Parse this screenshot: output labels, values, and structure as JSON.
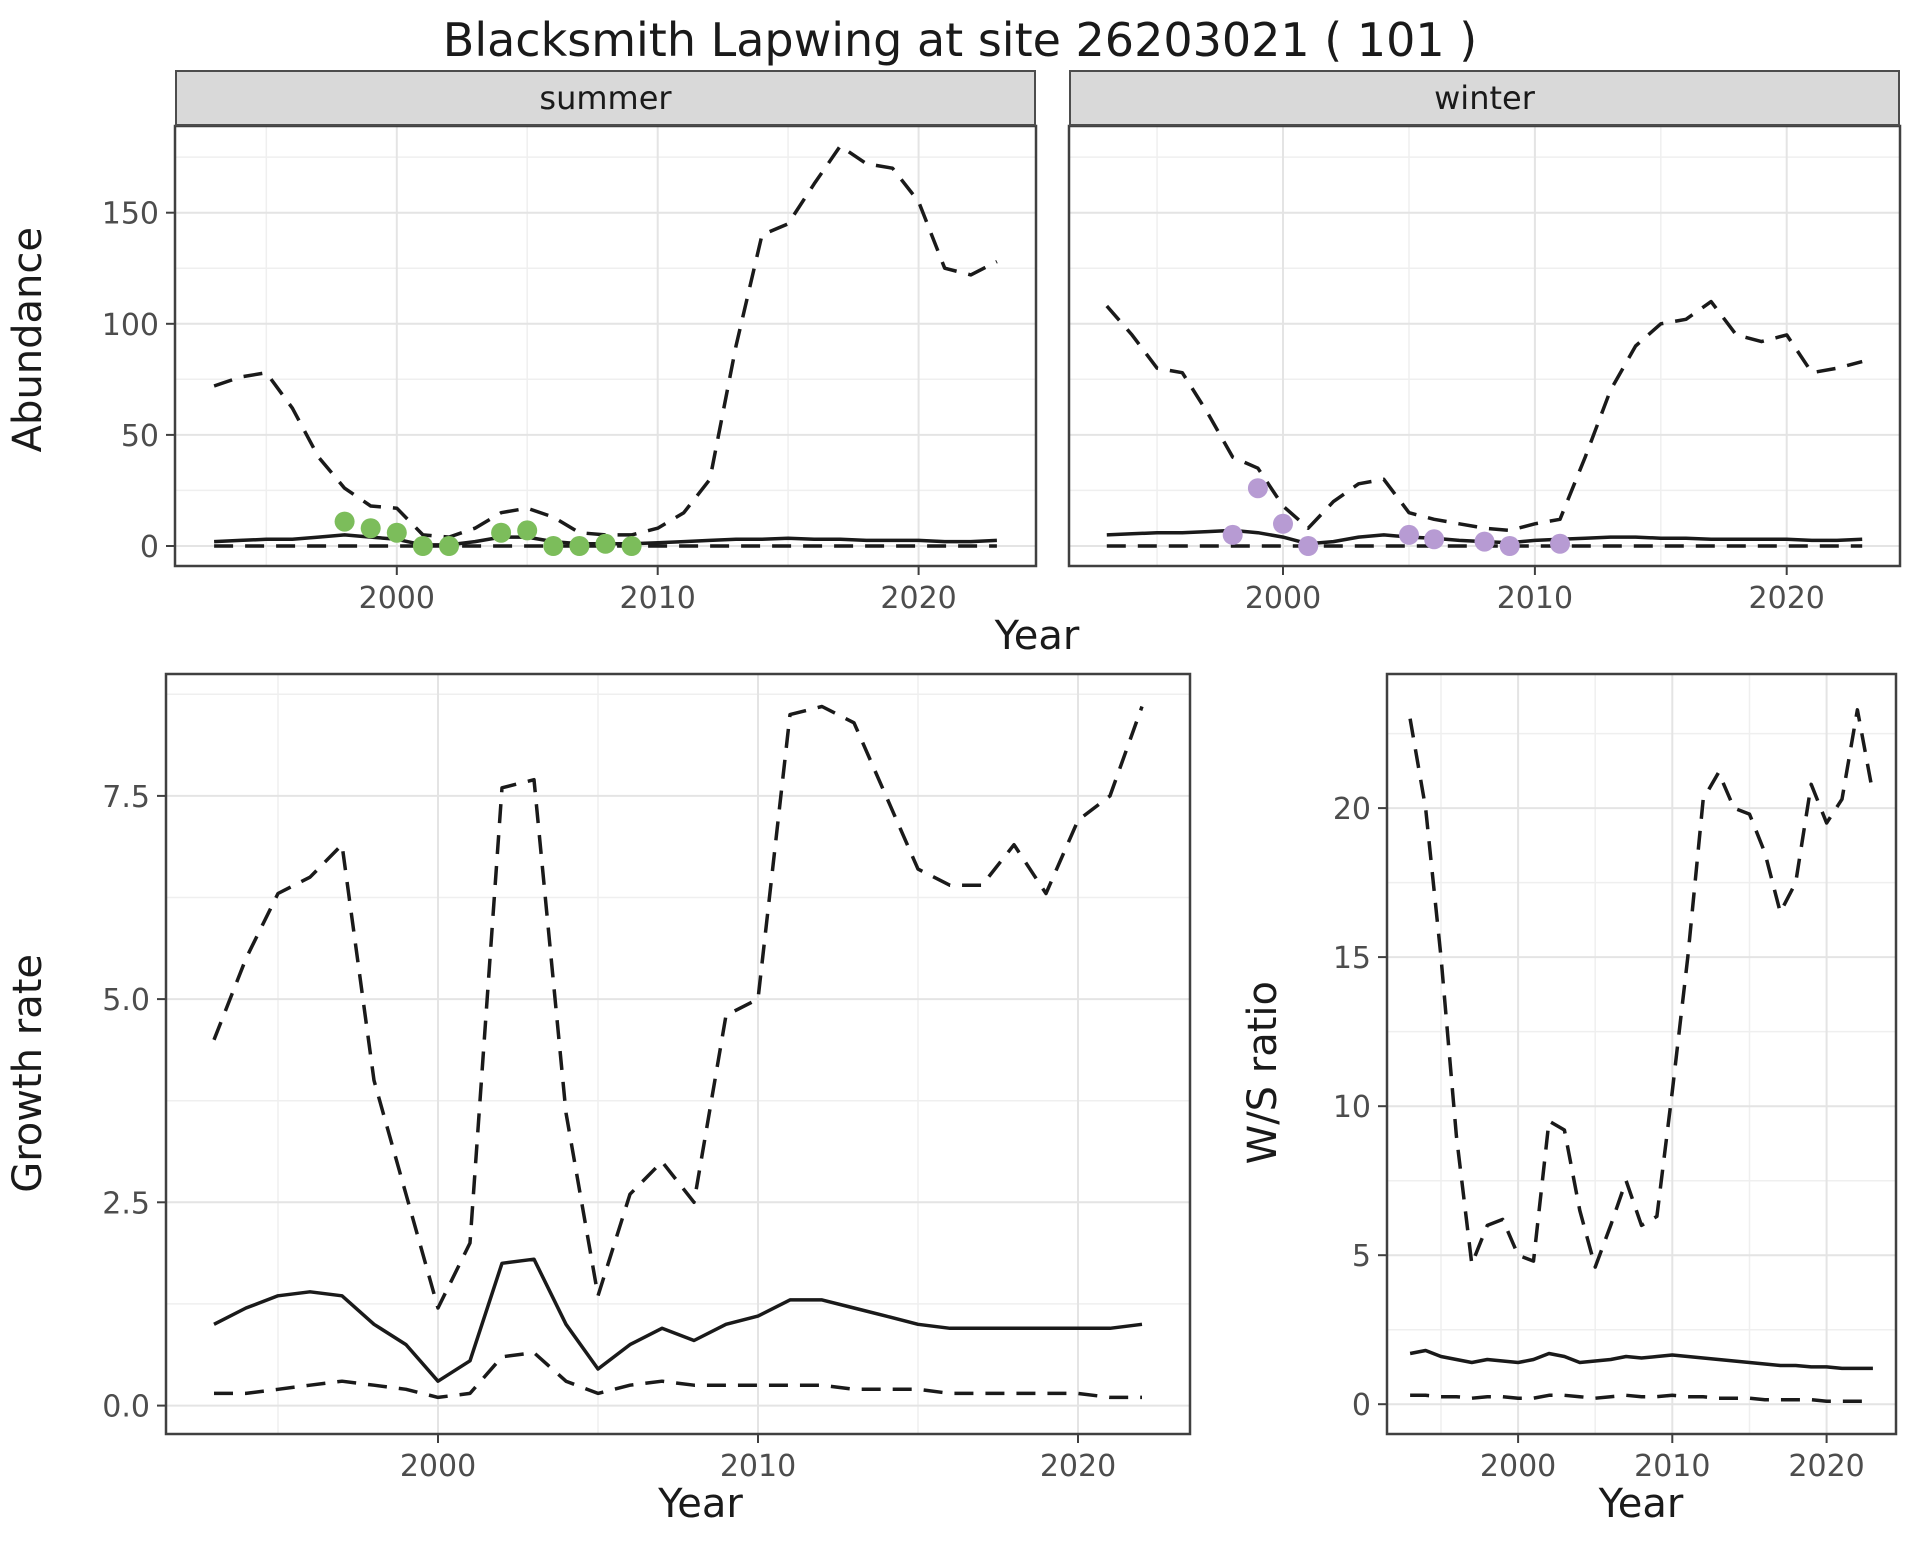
{
  "title": "Blacksmith Lapwing at site 26203021 ( 101 )",
  "colors": {
    "line": "#1a1a1a",
    "border": "#404040",
    "grid_major": "#e4e4e4",
    "grid_minor": "#efefef",
    "strip_bg": "#d9d9d9",
    "tick_text": "#4d4d4d",
    "summer_points": "#7cbd5b",
    "winter_points": "#b79bd3"
  },
  "chart_data": [
    {
      "id": "summer",
      "type": "line",
      "facet_label": "summer",
      "xlabel": "Year",
      "ylabel": "Abundance",
      "xlim": [
        1991.5,
        2024.5
      ],
      "ylim": [
        -9,
        189
      ],
      "xticks": [
        2000,
        2010,
        2020
      ],
      "xtick_labels": [
        "2000",
        "2010",
        "2020"
      ],
      "yticks": [
        0,
        50,
        100,
        150
      ],
      "ytick_labels": [
        "0",
        "50",
        "100",
        "150"
      ],
      "x": [
        1993,
        1994,
        1995,
        1996,
        1997,
        1998,
        1999,
        2000,
        2001,
        2002,
        2003,
        2004,
        2005,
        2006,
        2007,
        2008,
        2009,
        2010,
        2011,
        2012,
        2013,
        2014,
        2015,
        2016,
        2017,
        2018,
        2019,
        2020,
        2021,
        2022,
        2023
      ],
      "series": [
        {
          "name": "upper_ci",
          "style": "dashed",
          "values": [
            72,
            76,
            78,
            62,
            40,
            26,
            18,
            17,
            5,
            4,
            8,
            15,
            17,
            13,
            6,
            5,
            5,
            8,
            15,
            30,
            90,
            140,
            145,
            163,
            180,
            172,
            170,
            155,
            125,
            122,
            128
          ]
        },
        {
          "name": "fit",
          "style": "solid",
          "values": [
            2,
            2.5,
            3,
            3,
            4,
            5,
            4,
            3,
            0.5,
            0.5,
            2,
            4,
            4,
            2,
            1,
            1,
            1,
            1.5,
            2,
            2.5,
            3,
            3,
            3.5,
            3,
            3,
            2.5,
            2.5,
            2.5,
            2,
            2,
            2.5
          ]
        },
        {
          "name": "lower_ci",
          "style": "dashed",
          "values": [
            0,
            0,
            0,
            0,
            0,
            0,
            0,
            0,
            0,
            0,
            0,
            0,
            0,
            0,
            0,
            0,
            0,
            0,
            0,
            0,
            0,
            0,
            0,
            0,
            0,
            0,
            0,
            0,
            0,
            0,
            0
          ]
        }
      ],
      "points": {
        "name": "observed-counts-summer",
        "color": "#7cbd5b",
        "x": [
          1998,
          1999,
          2000,
          2001,
          2002,
          2004,
          2005,
          2006,
          2007,
          2008,
          2009
        ],
        "y": [
          11,
          8,
          6,
          0,
          0,
          6,
          7,
          0,
          0,
          1,
          0
        ]
      }
    },
    {
      "id": "winter",
      "type": "line",
      "facet_label": "winter",
      "xlabel": "Year",
      "ylabel": "Abundance",
      "xlim": [
        1991.5,
        2024.5
      ],
      "ylim": [
        -9,
        189
      ],
      "xticks": [
        2000,
        2010,
        2020
      ],
      "xtick_labels": [
        "2000",
        "2010",
        "2020"
      ],
      "yticks": [
        0,
        50,
        100,
        150
      ],
      "ytick_labels": [
        "0",
        "50",
        "100",
        "150"
      ],
      "x": [
        1993,
        1994,
        1995,
        1996,
        1997,
        1998,
        1999,
        2000,
        2001,
        2002,
        2003,
        2004,
        2005,
        2006,
        2007,
        2008,
        2009,
        2010,
        2011,
        2012,
        2013,
        2014,
        2015,
        2016,
        2017,
        2018,
        2019,
        2020,
        2021,
        2022,
        2023
      ],
      "series": [
        {
          "name": "upper_ci",
          "style": "dashed",
          "values": [
            108,
            95,
            80,
            78,
            60,
            40,
            35,
            18,
            8,
            20,
            28,
            30,
            15,
            12,
            10,
            8,
            7,
            10,
            12,
            40,
            70,
            90,
            100,
            102,
            110,
            95,
            92,
            95,
            78,
            80,
            83
          ]
        },
        {
          "name": "fit",
          "style": "solid",
          "values": [
            5,
            5.5,
            6,
            6,
            6.5,
            7,
            6,
            4,
            1,
            2,
            4,
            5,
            4,
            3.5,
            2.5,
            2,
            1.5,
            2.5,
            3,
            3.5,
            4,
            4,
            3.5,
            3.5,
            3,
            3,
            3,
            3,
            2.5,
            2.5,
            3
          ]
        },
        {
          "name": "lower_ci",
          "style": "dashed",
          "values": [
            0,
            0,
            0,
            0,
            0,
            0,
            0,
            0,
            0,
            0,
            0,
            0,
            0,
            0,
            0,
            0,
            0,
            0,
            0,
            0,
            0,
            0,
            0,
            0,
            0,
            0,
            0,
            0,
            0,
            0,
            0
          ]
        }
      ],
      "points": {
        "name": "observed-counts-winter",
        "color": "#b79bd3",
        "x": [
          1998,
          1999,
          2000,
          2001,
          2005,
          2006,
          2008,
          2009,
          2011
        ],
        "y": [
          5,
          26,
          10,
          0,
          5,
          3,
          2,
          0,
          1
        ]
      }
    },
    {
      "id": "growth",
      "type": "line",
      "xlabel": "Year",
      "ylabel": "Growth rate",
      "xlim": [
        1991.5,
        2023.5
      ],
      "ylim": [
        -0.35,
        9.0
      ],
      "xticks": [
        2000,
        2010,
        2020
      ],
      "xtick_labels": [
        "2000",
        "2010",
        "2020"
      ],
      "yticks": [
        0,
        2.5,
        5,
        7.5
      ],
      "ytick_labels": [
        "0.0",
        "2.5",
        "5.0",
        "7.5"
      ],
      "x": [
        1993,
        1994,
        1995,
        1996,
        1997,
        1998,
        1999,
        2000,
        2001,
        2002,
        2003,
        2004,
        2005,
        2006,
        2007,
        2008,
        2009,
        2010,
        2011,
        2012,
        2013,
        2014,
        2015,
        2016,
        2017,
        2018,
        2019,
        2020,
        2021,
        2022
      ],
      "series": [
        {
          "name": "upper_ci",
          "style": "dashed",
          "values": [
            4.5,
            5.5,
            6.3,
            6.5,
            6.9,
            4.0,
            2.6,
            1.2,
            2.0,
            7.6,
            7.7,
            3.6,
            1.35,
            2.6,
            3.0,
            2.5,
            4.8,
            5.0,
            8.5,
            8.6,
            8.4,
            7.5,
            6.6,
            6.4,
            6.4,
            6.9,
            6.3,
            7.2,
            7.5,
            8.6
          ]
        },
        {
          "name": "fit",
          "style": "solid",
          "values": [
            1.0,
            1.2,
            1.35,
            1.4,
            1.35,
            1.0,
            0.75,
            0.3,
            0.55,
            1.75,
            1.8,
            1.0,
            0.45,
            0.75,
            0.95,
            0.8,
            1.0,
            1.1,
            1.3,
            1.3,
            1.2,
            1.1,
            1.0,
            0.95,
            0.95,
            0.95,
            0.95,
            0.95,
            0.95,
            1.0
          ]
        },
        {
          "name": "lower_ci",
          "style": "dashed",
          "values": [
            0.15,
            0.15,
            0.2,
            0.25,
            0.3,
            0.25,
            0.2,
            0.1,
            0.15,
            0.6,
            0.65,
            0.3,
            0.15,
            0.25,
            0.3,
            0.25,
            0.25,
            0.25,
            0.25,
            0.25,
            0.2,
            0.2,
            0.2,
            0.15,
            0.15,
            0.15,
            0.15,
            0.15,
            0.1,
            0.1
          ]
        }
      ]
    },
    {
      "id": "ratio",
      "type": "line",
      "xlabel": "Year",
      "ylabel": "W/S ratio",
      "xlim": [
        1991.5,
        2024.5
      ],
      "ylim": [
        -1.0,
        24.5
      ],
      "xticks": [
        2000,
        2010,
        2020
      ],
      "xtick_labels": [
        "2000",
        "2010",
        "2020"
      ],
      "yticks": [
        0,
        5,
        10,
        15,
        20
      ],
      "ytick_labels": [
        "0",
        "5",
        "10",
        "15",
        "20"
      ],
      "x": [
        1993,
        1994,
        1995,
        1996,
        1997,
        1998,
        1999,
        2000,
        2001,
        2002,
        2003,
        2004,
        2005,
        2006,
        2007,
        2008,
        2009,
        2010,
        2011,
        2012,
        2013,
        2014,
        2015,
        2016,
        2017,
        2018,
        2019,
        2020,
        2021,
        2022,
        2023
      ],
      "series": [
        {
          "name": "upper_ci",
          "style": "dashed",
          "values": [
            23,
            20,
            15,
            9,
            4.7,
            6.0,
            6.2,
            5.0,
            4.8,
            9.5,
            9.2,
            6.5,
            4.6,
            6.0,
            7.5,
            6.0,
            6.3,
            10.5,
            15,
            20.3,
            21.2,
            20.0,
            19.8,
            18.5,
            16.5,
            17.5,
            20.8,
            19.5,
            20.3,
            23.3,
            20.5
          ]
        },
        {
          "name": "fit",
          "style": "solid",
          "values": [
            1.7,
            1.8,
            1.6,
            1.5,
            1.4,
            1.5,
            1.45,
            1.4,
            1.5,
            1.7,
            1.6,
            1.4,
            1.45,
            1.5,
            1.6,
            1.55,
            1.6,
            1.65,
            1.6,
            1.55,
            1.5,
            1.45,
            1.4,
            1.35,
            1.3,
            1.3,
            1.25,
            1.25,
            1.2,
            1.2,
            1.2
          ]
        },
        {
          "name": "lower_ci",
          "style": "dashed",
          "values": [
            0.3,
            0.3,
            0.25,
            0.25,
            0.2,
            0.25,
            0.25,
            0.2,
            0.2,
            0.3,
            0.3,
            0.25,
            0.2,
            0.25,
            0.3,
            0.25,
            0.25,
            0.3,
            0.25,
            0.25,
            0.2,
            0.2,
            0.2,
            0.15,
            0.15,
            0.15,
            0.15,
            0.1,
            0.1,
            0.1,
            0.1
          ]
        }
      ]
    }
  ]
}
